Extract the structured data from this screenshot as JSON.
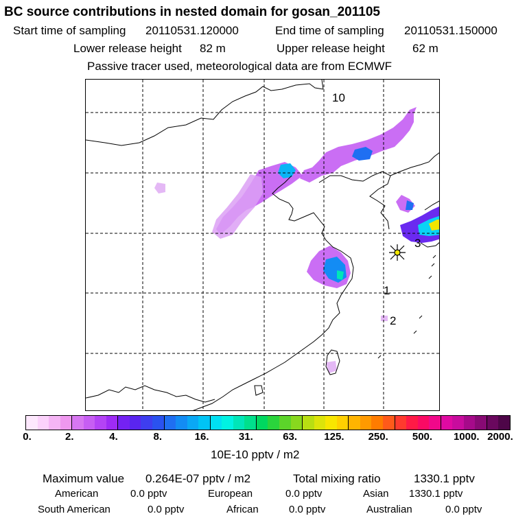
{
  "header": {
    "title": "BC  source contributions in nested domain for gosan_201105",
    "start_label": "Start time of sampling",
    "start_value": "20110531.120000",
    "end_label": "End time of sampling",
    "end_value": "20110531.150000",
    "lower_label": "Lower release height",
    "lower_value": "82 m",
    "upper_label": "Upper release height",
    "upper_value": "62 m",
    "note": "Passive tracer used, meteorological data are from ECMWF"
  },
  "map": {
    "region_labels": [
      "10",
      "3",
      "1",
      "2"
    ],
    "release_marker": "gosan-release-site"
  },
  "colorbar": {
    "ticks": [
      "0.",
      "2.",
      "4.",
      "8.",
      "16.",
      "31.",
      "63.",
      "125.",
      "250.",
      "500.",
      "1000.",
      "2000."
    ],
    "colors": [
      "#fde8fd",
      "#fbd2fb",
      "#f5b5f5",
      "#ef98ef",
      "#d777f1",
      "#c75ef3",
      "#b443f5",
      "#9e2bf5",
      "#7422f3",
      "#5a25f0",
      "#3e3ef0",
      "#2a52f0",
      "#1f6ff2",
      "#138cf4",
      "#0aa8f5",
      "#00c4f5",
      "#00e0f2",
      "#00f2e2",
      "#00e6b8",
      "#00e08c",
      "#00d860",
      "#2ad43c",
      "#5cd42a",
      "#88d81e",
      "#b8de12",
      "#dce40a",
      "#f8e600",
      "#ffd000",
      "#ffb400",
      "#ff9a00",
      "#ff7c00",
      "#ff5a1a",
      "#ff3a2e",
      "#ff1a46",
      "#fa0a64",
      "#f0088a",
      "#e00aa2",
      "#c80c9e",
      "#a60a8a",
      "#880a74",
      "#6a085e",
      "#4e0648"
    ],
    "unit": "10E-10 pptv / m2"
  },
  "stats": {
    "max_label": "Maximum value",
    "max_value": "0.264E-07 pptv / m2",
    "total_label": "Total mixing ratio",
    "total_value": "1330.1 pptv"
  },
  "contributions": [
    {
      "name": "American",
      "value": "0.0 pptv"
    },
    {
      "name": "European",
      "value": "0.0 pptv"
    },
    {
      "name": "Asian",
      "value": "1330.1 pptv"
    },
    {
      "name": "South American",
      "value": "0.0 pptv"
    },
    {
      "name": "African",
      "value": "0.0 pptv"
    },
    {
      "name": "Australian",
      "value": "0.0 pptv"
    }
  ]
}
